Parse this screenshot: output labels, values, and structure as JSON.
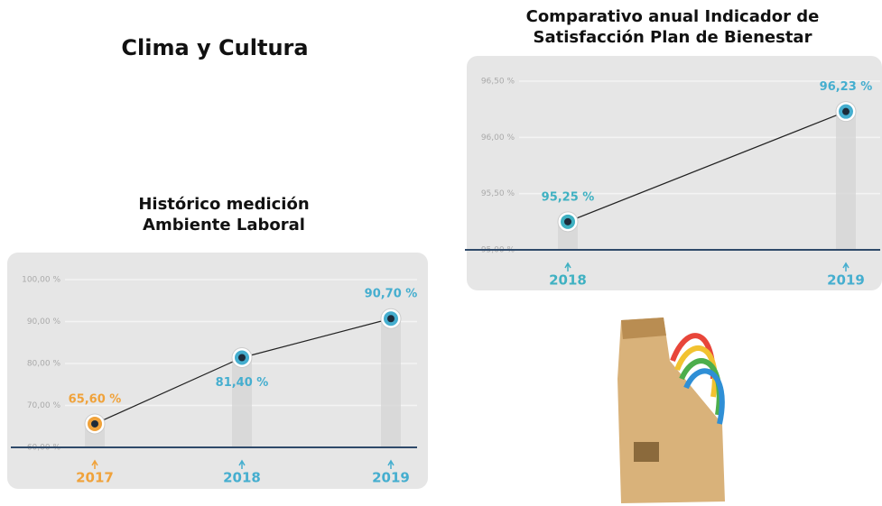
{
  "title": "Clima y Cultura",
  "chart_data": [
    {
      "type": "line",
      "title": "Histórico medición Ambiente Laboral",
      "categories": [
        "2017",
        "2018",
        "2019"
      ],
      "values": [
        65.6,
        81.4,
        90.7
      ],
      "value_labels": [
        "65,60 %",
        "81,40 %",
        "90,70 %"
      ],
      "point_colors": [
        "#f0a23a",
        "#45aecf",
        "#45aecf"
      ],
      "line_color": "#222222",
      "ylim": [
        60,
        100
      ],
      "yticks": [
        {
          "value": 60,
          "label": "60,00 %"
        },
        {
          "value": 70,
          "label": "70,00 %"
        },
        {
          "value": 80,
          "label": "80,00 %"
        },
        {
          "value": 90,
          "label": "90,00 %"
        },
        {
          "value": 100,
          "label": "100,00 %"
        }
      ],
      "grid": true
    },
    {
      "type": "line",
      "title": "Comparativo anual Indicador de Satisfacción Plan de Bienestar",
      "categories": [
        "2018",
        "2019"
      ],
      "values": [
        95.25,
        96.23
      ],
      "value_labels": [
        "95,25 %",
        "96,23 %"
      ],
      "point_colors": [
        "#3fb1c2",
        "#45aecf"
      ],
      "line_color": "#222222",
      "ylim": [
        95,
        96.5
      ],
      "yticks": [
        {
          "value": 95,
          "label": "95,00 %"
        },
        {
          "value": 95.5,
          "label": "95,50 %"
        },
        {
          "value": 96,
          "label": "96,00 %"
        },
        {
          "value": 96.5,
          "label": "96,50 %"
        }
      ],
      "grid": true
    }
  ]
}
